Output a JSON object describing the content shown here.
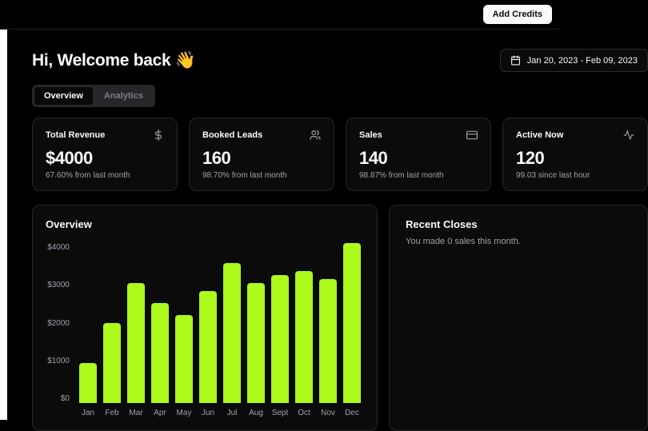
{
  "topbar": {
    "add_credits_label": "Add Credits"
  },
  "page": {
    "greeting": "Hi, Welcome back 👋",
    "date_range": "Jan 20, 2023 - Feb 09, 2023"
  },
  "tabs": {
    "overview": "Overview",
    "analytics": "Analytics"
  },
  "stats": [
    {
      "title": "Total Revenue",
      "icon": "dollar-sign-icon",
      "value": "$4000",
      "delta": "67.60% from last month"
    },
    {
      "title": "Booked Leads",
      "icon": "users-icon",
      "value": "160",
      "delta": "98.70% from last month"
    },
    {
      "title": "Sales",
      "icon": "credit-card-icon",
      "value": "140",
      "delta": "98.87% from last month"
    },
    {
      "title": "Active Now",
      "icon": "activity-icon",
      "value": "120",
      "delta": "99.03 since last hour"
    }
  ],
  "overview_card": {
    "title": "Overview"
  },
  "recent_closes_card": {
    "title": "Recent Closes",
    "subtitle": "You made 0 sales this month."
  },
  "chart_data": {
    "type": "bar",
    "title": "Overview",
    "categories": [
      "Jan",
      "Feb",
      "Mar",
      "Apr",
      "May",
      "Jun",
      "Jul",
      "Aug",
      "Sept",
      "Oct",
      "Nov",
      "Dec"
    ],
    "values": [
      1000,
      2000,
      3000,
      2500,
      2200,
      2800,
      3500,
      3000,
      3200,
      3300,
      3100,
      4000
    ],
    "xlabel": "",
    "ylabel": "",
    "ylim": [
      0,
      4000
    ],
    "ytick_labels": [
      "$0",
      "$1000",
      "$2000",
      "$3000",
      "$4000"
    ],
    "grid": false,
    "legend": false,
    "bar_color": "#adfa1d"
  },
  "colors": {
    "accent": "#adfa1d",
    "background": "#000000",
    "card_border": "#26262a",
    "muted_text": "#a1a1aa"
  }
}
